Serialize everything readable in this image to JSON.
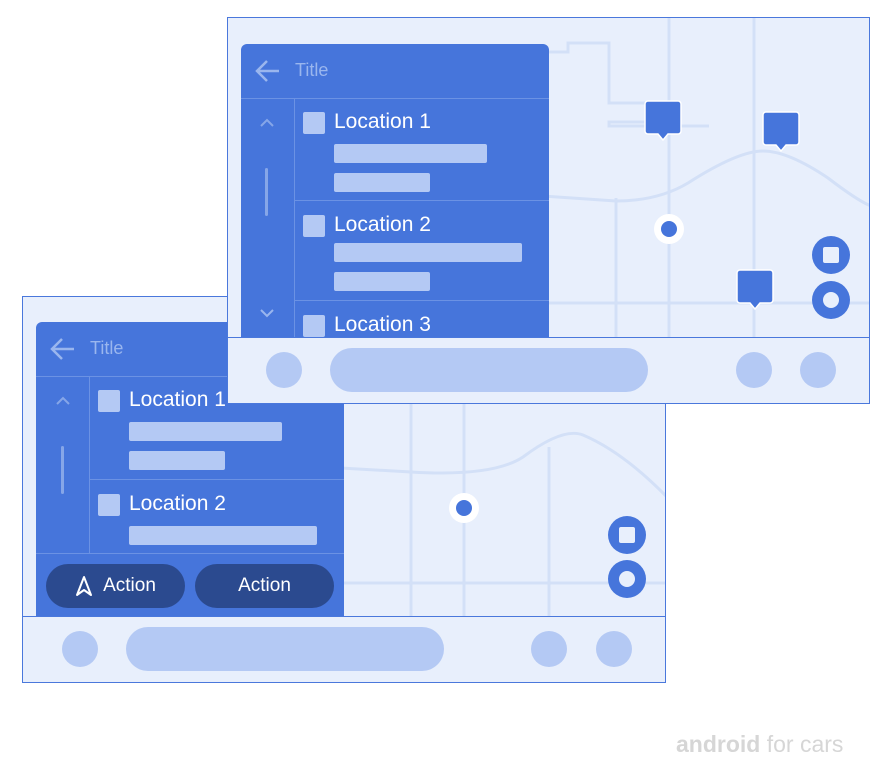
{
  "screens": [
    {
      "panel": {
        "title": "Title",
        "locations": [
          "Location 1",
          "Location 2"
        ],
        "actions": [
          {
            "label": "Action",
            "icon": "navigation-icon"
          },
          {
            "label": "Action"
          }
        ]
      }
    },
    {
      "panel": {
        "title": "Title",
        "locations": [
          "Location 1",
          "Location 2",
          "Location 3"
        ]
      }
    }
  ],
  "brand": {
    "bold": "android",
    "rest": "for cars"
  },
  "colors": {
    "panel": "#4675db",
    "map": "#e8effc",
    "placeholder": "#b4c9f4",
    "action": "#2b4a8f",
    "road": "#d3e0f7"
  }
}
